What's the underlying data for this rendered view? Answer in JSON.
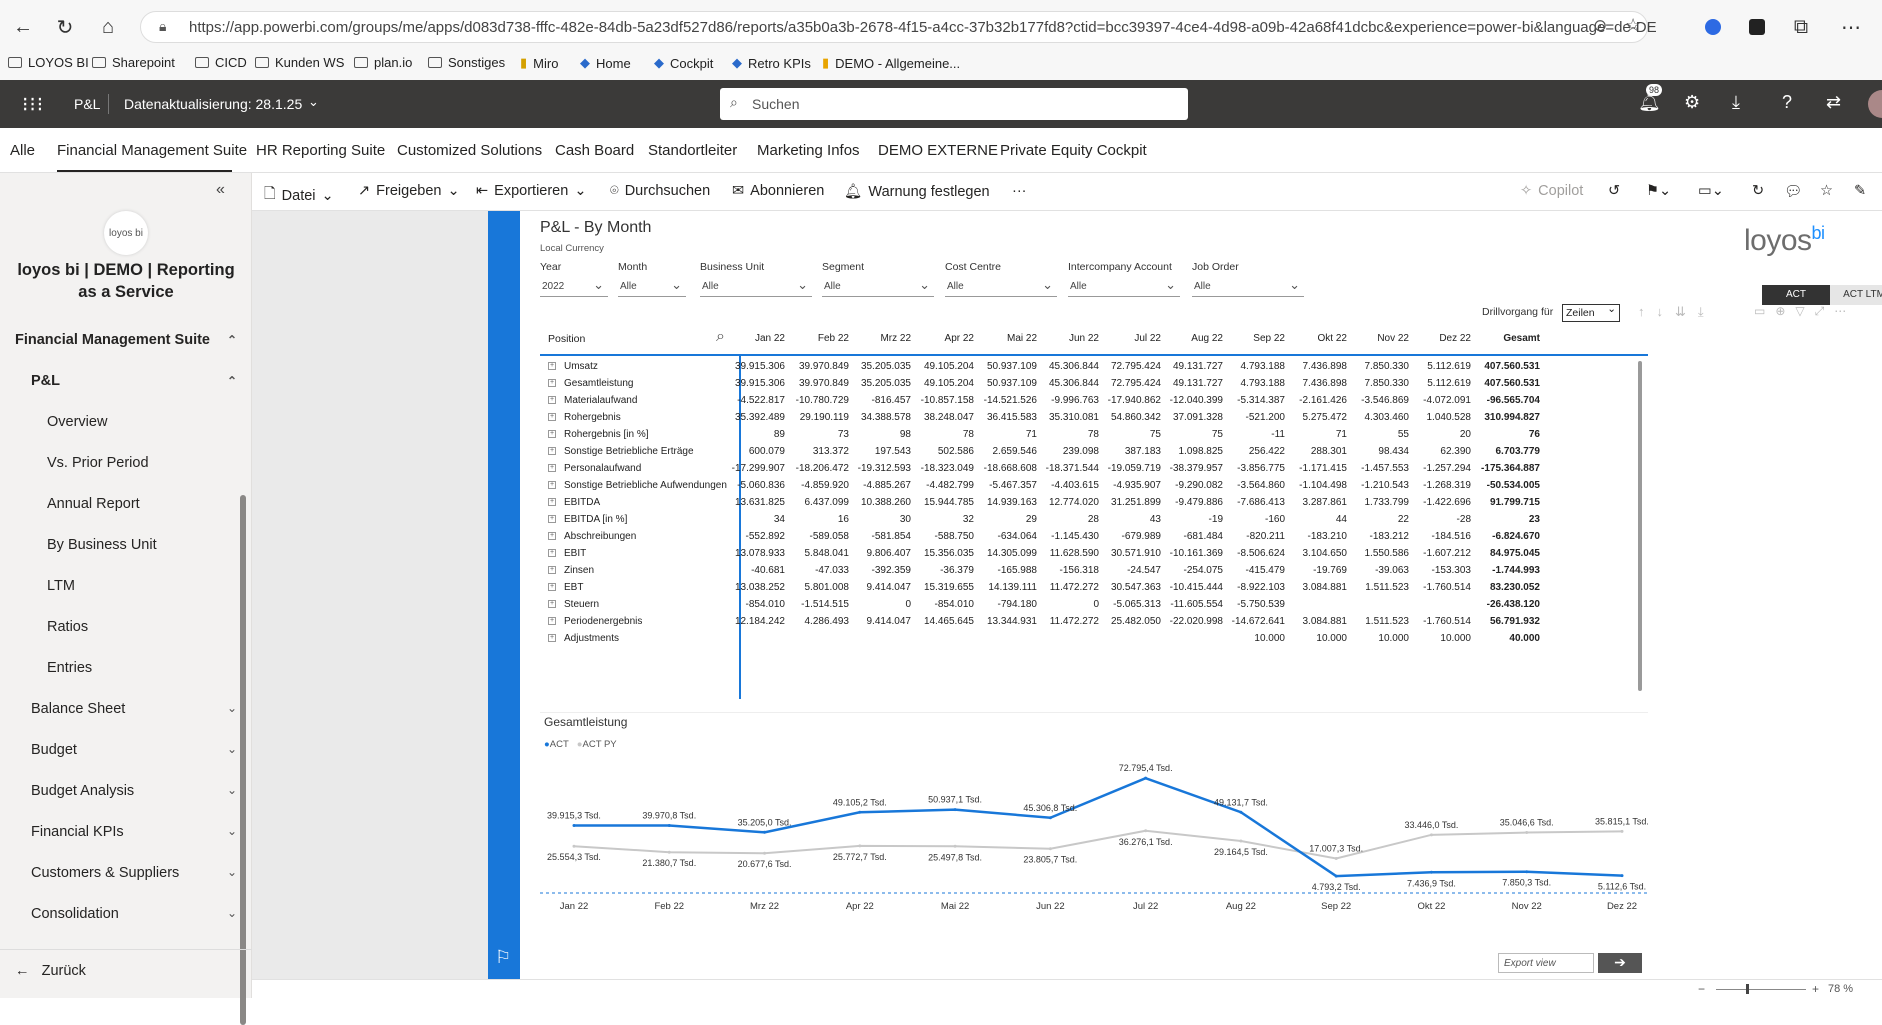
{
  "browser": {
    "url": "https://app.powerbi.com/groups/me/apps/d083d738-fffc-482e-84db-5a23df527d86/reports/a35b0a3b-2678-4f15-a4cc-37b32b177fd8?ctid=bcc39397-4ce4-4d98-a09b-42a68f41dcbc&experience=power-bi&language=de-DE",
    "bookmarks": [
      "LOYOS BI",
      "Sharepoint",
      "CICD",
      "Kunden WS",
      "plan.io",
      "Sonstiges",
      "Miro",
      "Home",
      "Cockpit",
      "Retro KPIs",
      "DEMO - Allgemeine..."
    ]
  },
  "topbar": {
    "app_name": "P&L",
    "refresh": "Datenaktualisierung: 28.1.25",
    "search_placeholder": "Suchen",
    "notif_count": "98"
  },
  "app_tabs": [
    "Alle",
    "Financial Management Suite",
    "HR Reporting Suite",
    "Customized Solutions",
    "Cash Board",
    "Standortleiter",
    "Marketing Infos",
    "DEMO EXTERNE",
    "Private Equity Cockpit"
  ],
  "sidebar": {
    "logo_text": "loyos bi",
    "title_line1": "loyos bi | DEMO | Reporting",
    "title_line2": "as a Service",
    "section": "Financial Management Suite",
    "group": "P&L",
    "pages": [
      "Overview",
      "Vs. Prior Period",
      "Annual Report",
      "By Business Unit",
      "LTM",
      "Ratios",
      "Entries"
    ],
    "groups": [
      "Balance Sheet",
      "Budget",
      "Budget Analysis",
      "Financial KPIs",
      "Customers & Suppliers",
      "Consolidation"
    ],
    "back": "Zurück"
  },
  "commands": {
    "datei": "Datei",
    "freigeben": "Freigeben",
    "exportieren": "Exportieren",
    "durchsuchen": "Durchsuchen",
    "abonnieren": "Abonnieren",
    "warnung": "Warnung festlegen",
    "more": "···",
    "copilot": "Copilot"
  },
  "report": {
    "title": "P&L - By Month",
    "subtitle": "Local Currency",
    "brand": "loyos",
    "brand_sup": "bi",
    "filters": [
      {
        "label": "Year",
        "value": "2022"
      },
      {
        "label": "Month",
        "value": "Alle"
      },
      {
        "label": "Business Unit",
        "value": "Alle"
      },
      {
        "label": "Segment",
        "value": "Alle"
      },
      {
        "label": "Cost Centre",
        "value": "Alle"
      },
      {
        "label": "Intercompany Account",
        "value": "Alle"
      },
      {
        "label": "Job Order",
        "value": "Alle"
      }
    ],
    "toggle_act": "ACT",
    "toggle_ltm": "ACT LTM",
    "drill_label": "Drillvorgang für",
    "drill_value": "Zeilen",
    "export_view": "Export view"
  },
  "matrix": {
    "position_header": "Position",
    "months": [
      "Jan 22",
      "Feb 22",
      "Mrz 22",
      "Apr 22",
      "Mai 22",
      "Jun 22",
      "Jul 22",
      "Aug 22",
      "Sep 22",
      "Okt 22",
      "Nov 22",
      "Dez 22",
      "Gesamt"
    ],
    "rows": [
      {
        "name": "Umsatz",
        "v": [
          "39.915.306",
          "39.970.849",
          "35.205.035",
          "49.105.204",
          "50.937.109",
          "45.306.844",
          "72.795.424",
          "49.131.727",
          "4.793.188",
          "7.436.898",
          "7.850.330",
          "5.112.619",
          "407.560.531"
        ]
      },
      {
        "name": "Gesamtleistung",
        "v": [
          "39.915.306",
          "39.970.849",
          "35.205.035",
          "49.105.204",
          "50.937.109",
          "45.306.844",
          "72.795.424",
          "49.131.727",
          "4.793.188",
          "7.436.898",
          "7.850.330",
          "5.112.619",
          "407.560.531"
        ]
      },
      {
        "name": "Materialaufwand",
        "v": [
          "-4.522.817",
          "-10.780.729",
          "-816.457",
          "-10.857.158",
          "-14.521.526",
          "-9.996.763",
          "-17.940.862",
          "-12.040.399",
          "-5.314.387",
          "-2.161.426",
          "-3.546.869",
          "-4.072.091",
          "-96.565.704"
        ]
      },
      {
        "name": "Rohergebnis",
        "v": [
          "35.392.489",
          "29.190.119",
          "34.388.578",
          "38.248.047",
          "36.415.583",
          "35.310.081",
          "54.860.342",
          "37.091.328",
          "-521.200",
          "5.275.472",
          "4.303.460",
          "1.040.528",
          "310.994.827"
        ]
      },
      {
        "name": "Rohergebnis [in %]",
        "v": [
          "89",
          "73",
          "98",
          "78",
          "71",
          "78",
          "75",
          "75",
          "-11",
          "71",
          "55",
          "20",
          "76"
        ]
      },
      {
        "name": "Sonstige Betriebliche Erträge",
        "v": [
          "600.079",
          "313.372",
          "197.543",
          "502.586",
          "2.659.546",
          "239.098",
          "387.183",
          "1.098.825",
          "256.422",
          "288.301",
          "98.434",
          "62.390",
          "6.703.779"
        ]
      },
      {
        "name": "Personalaufwand",
        "v": [
          "-17.299.907",
          "-18.206.472",
          "-19.312.593",
          "-18.323.049",
          "-18.668.608",
          "-18.371.544",
          "-19.059.719",
          "-38.379.957",
          "-3.856.775",
          "-1.171.415",
          "-1.457.553",
          "-1.257.294",
          "-175.364.887"
        ]
      },
      {
        "name": "Sonstige Betriebliche Aufwendungen",
        "v": [
          "-5.060.836",
          "-4.859.920",
          "-4.885.267",
          "-4.482.799",
          "-5.467.357",
          "-4.403.615",
          "-4.935.907",
          "-9.290.082",
          "-3.564.860",
          "-1.104.498",
          "-1.210.543",
          "-1.268.319",
          "-50.534.005"
        ]
      },
      {
        "name": "EBITDA",
        "v": [
          "13.631.825",
          "6.437.099",
          "10.388.260",
          "15.944.785",
          "14.939.163",
          "12.774.020",
          "31.251.899",
          "-9.479.886",
          "-7.686.413",
          "3.287.861",
          "1.733.799",
          "-1.422.696",
          "91.799.715"
        ]
      },
      {
        "name": "EBITDA [in %]",
        "v": [
          "34",
          "16",
          "30",
          "32",
          "29",
          "28",
          "43",
          "-19",
          "-160",
          "44",
          "22",
          "-28",
          "23"
        ]
      },
      {
        "name": "Abschreibungen",
        "v": [
          "-552.892",
          "-589.058",
          "-581.854",
          "-588.750",
          "-634.064",
          "-1.145.430",
          "-679.989",
          "-681.484",
          "-820.211",
          "-183.210",
          "-183.212",
          "-184.516",
          "-6.824.670"
        ]
      },
      {
        "name": "EBIT",
        "v": [
          "13.078.933",
          "5.848.041",
          "9.806.407",
          "15.356.035",
          "14.305.099",
          "11.628.590",
          "30.571.910",
          "-10.161.369",
          "-8.506.624",
          "3.104.650",
          "1.550.586",
          "-1.607.212",
          "84.975.045"
        ]
      },
      {
        "name": "Zinsen",
        "v": [
          "-40.681",
          "-47.033",
          "-392.359",
          "-36.379",
          "-165.988",
          "-156.318",
          "-24.547",
          "-254.075",
          "-415.479",
          "-19.769",
          "-39.063",
          "-153.303",
          "-1.744.993"
        ]
      },
      {
        "name": "EBT",
        "v": [
          "13.038.252",
          "5.801.008",
          "9.414.047",
          "15.319.655",
          "14.139.111",
          "11.472.272",
          "30.547.363",
          "-10.415.444",
          "-8.922.103",
          "3.084.881",
          "1.511.523",
          "-1.760.514",
          "83.230.052"
        ]
      },
      {
        "name": "Steuern",
        "v": [
          "-854.010",
          "-1.514.515",
          "0",
          "-854.010",
          "-794.180",
          "0",
          "-5.065.313",
          "-11.605.554",
          "-5.750.539",
          "",
          "",
          "",
          "-26.438.120"
        ]
      },
      {
        "name": "Periodenergebnis",
        "v": [
          "12.184.242",
          "4.286.493",
          "9.414.047",
          "14.465.645",
          "13.344.931",
          "11.472.272",
          "25.482.050",
          "-22.020.998",
          "-14.672.641",
          "3.084.881",
          "1.511.523",
          "-1.760.514",
          "56.791.932"
        ]
      },
      {
        "name": "Adjustments",
        "v": [
          "",
          "",
          "",
          "",
          "",
          "",
          "",
          "",
          "10.000",
          "10.000",
          "10.000",
          "10.000",
          "40.000"
        ]
      }
    ]
  },
  "chart_data": {
    "type": "line",
    "title": "Gesamtleistung",
    "categories": [
      "Jan 22",
      "Feb 22",
      "Mrz 22",
      "Apr 22",
      "Mai 22",
      "Jun 22",
      "Jul 22",
      "Aug 22",
      "Sep 22",
      "Okt 22",
      "Nov 22",
      "Dez 22"
    ],
    "series": [
      {
        "name": "ACT",
        "color": "#1877d9",
        "values": [
          39915.3,
          39970.8,
          35205.0,
          49105.2,
          50937.1,
          45306.8,
          72795.4,
          49131.7,
          4793.2,
          7436.9,
          7850.3,
          5112.6
        ],
        "labels": [
          "39.915,3 Tsd.",
          "39.970,8 Tsd.",
          "35.205,0 Tsd.",
          "49.105,2 Tsd.",
          "50.937,1 Tsd.",
          "45.306,8 Tsd.",
          "72.795,4 Tsd.",
          "49.131,7 Tsd.",
          "4.793,2 Tsd.",
          "7.436,9 Tsd.",
          "7.850,3 Tsd.",
          "5.112,6 Tsd."
        ]
      },
      {
        "name": "ACT PY",
        "color": "#c8c8c8",
        "values": [
          25554.3,
          21380.7,
          20677.6,
          25772.7,
          25497.8,
          23805.7,
          36276.1,
          29164.5,
          17007.3,
          33446.0,
          35046.6,
          35815.1
        ],
        "labels": [
          "25.554,3 Tsd.",
          "21.380,7 Tsd.",
          "20.677,6 Tsd.",
          "25.772,7 Tsd.",
          "25.497,8 Tsd.",
          "23.805,7 Tsd.",
          "36.276,1 Tsd.",
          "29.164,5 Tsd.",
          "17.007,3 Tsd.",
          "33.446,0 Tsd.",
          "35.046,6 Tsd.",
          "35.815,1 Tsd."
        ]
      }
    ],
    "legend": "top-left",
    "grid": false
  },
  "status": {
    "zoom": "78 %"
  }
}
